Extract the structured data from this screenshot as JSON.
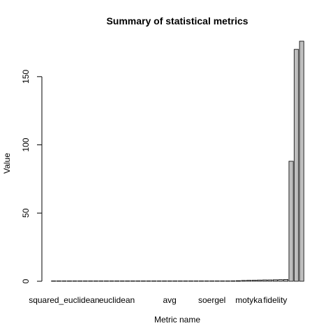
{
  "chart_data": {
    "type": "bar",
    "title": "Summary of statistical metrics",
    "xlabel": "Metric name",
    "ylabel": "Value",
    "ylim": [
      0,
      176
    ],
    "yticks": [
      0,
      50,
      100,
      150
    ],
    "category_labels_shown": [
      {
        "index": 2,
        "label": "squared_euclidean"
      },
      {
        "index": 12,
        "label": "euclidean"
      },
      {
        "index": 22,
        "label": "avg"
      },
      {
        "index": 30,
        "label": "soergel"
      },
      {
        "index": 37,
        "label": "motyka"
      },
      {
        "index": 42,
        "label": "fidelity"
      }
    ],
    "values": [
      0,
      0,
      0,
      0,
      0,
      0,
      0,
      0,
      0,
      0,
      0,
      0,
      0,
      0,
      0,
      0,
      0,
      0,
      0,
      0,
      0,
      0,
      0,
      0,
      0,
      0,
      0,
      0,
      0,
      0,
      0.1,
      0.1,
      0.2,
      0.2,
      0.3,
      0.4,
      0.6,
      0.7,
      0.8,
      0.9,
      1.0,
      1.0,
      1.1,
      1.2,
      1.3,
      88,
      170,
      176
    ],
    "grid": false,
    "bar_color": "#bebebe"
  }
}
